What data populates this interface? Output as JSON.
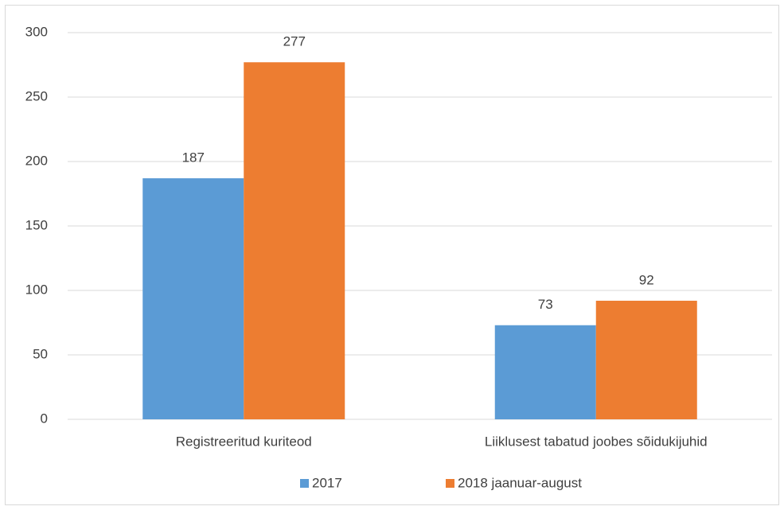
{
  "chart_data": {
    "type": "bar",
    "categories": [
      "Registreeritud kuriteod",
      "Liiklusest tabatud joobes sõidukijuhid"
    ],
    "series": [
      {
        "name": "2017",
        "color": "#5b9bd5",
        "values": [
          187,
          73
        ]
      },
      {
        "name": "2018 jaanuar-august",
        "color": "#ed7d31",
        "values": [
          277,
          92
        ]
      }
    ],
    "ylim": [
      0,
      300
    ],
    "yticks": [
      0,
      50,
      100,
      150,
      200,
      250,
      300
    ],
    "grid": true,
    "legend": "bottom"
  }
}
